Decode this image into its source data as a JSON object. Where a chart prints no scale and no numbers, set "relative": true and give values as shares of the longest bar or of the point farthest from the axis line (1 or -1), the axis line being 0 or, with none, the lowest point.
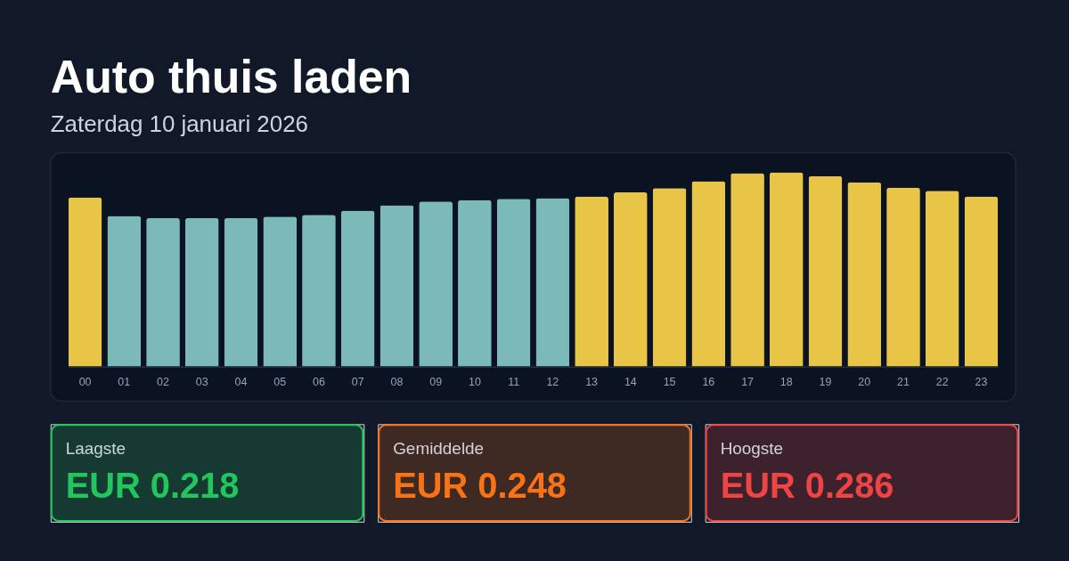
{
  "chart_data": [
    {
      "type": "bar",
      "title": "Auto thuis laden",
      "subtitle": "Zaterdag 10 januari 2026",
      "categories": [
        "00",
        "01",
        "02",
        "03",
        "04",
        "05",
        "06",
        "07",
        "08",
        "09",
        "10",
        "11",
        "12",
        "13",
        "14",
        "15",
        "16",
        "17",
        "18",
        "19",
        "20",
        "21",
        "22",
        "23"
      ],
      "values": [
        0.87,
        0.775,
        0.764,
        0.764,
        0.764,
        0.772,
        0.781,
        0.803,
        0.83,
        0.85,
        0.857,
        0.864,
        0.867,
        0.875,
        0.897,
        0.919,
        0.954,
        0.995,
        1.0,
        0.981,
        0.948,
        0.921,
        0.905,
        0.875
      ],
      "colors": [
        "#e8c547",
        "#7cb9b9",
        "#7cb9b9",
        "#7cb9b9",
        "#7cb9b9",
        "#7cb9b9",
        "#7cb9b9",
        "#7cb9b9",
        "#7cb9b9",
        "#7cb9b9",
        "#7cb9b9",
        "#7cb9b9",
        "#7cb9b9",
        "#e8c547",
        "#e8c547",
        "#e8c547",
        "#e8c547",
        "#e8c547",
        "#e8c547",
        "#e8c547",
        "#e8c547",
        "#e8c547",
        "#e8c547",
        "#e8c547"
      ],
      "relative": true
    },
    {
      "type": "other",
      "title": "Laagste",
      "annotations": [
        "EUR 0.218"
      ],
      "color": "#22c55e"
    },
    {
      "type": "other",
      "title": "Gemiddelde",
      "annotations": [
        "EUR 0.248"
      ],
      "color": "#f97316"
    },
    {
      "type": "other",
      "title": "Hoogste",
      "annotations": [
        "EUR 0.286"
      ],
      "color": "#ef4444"
    }
  ]
}
